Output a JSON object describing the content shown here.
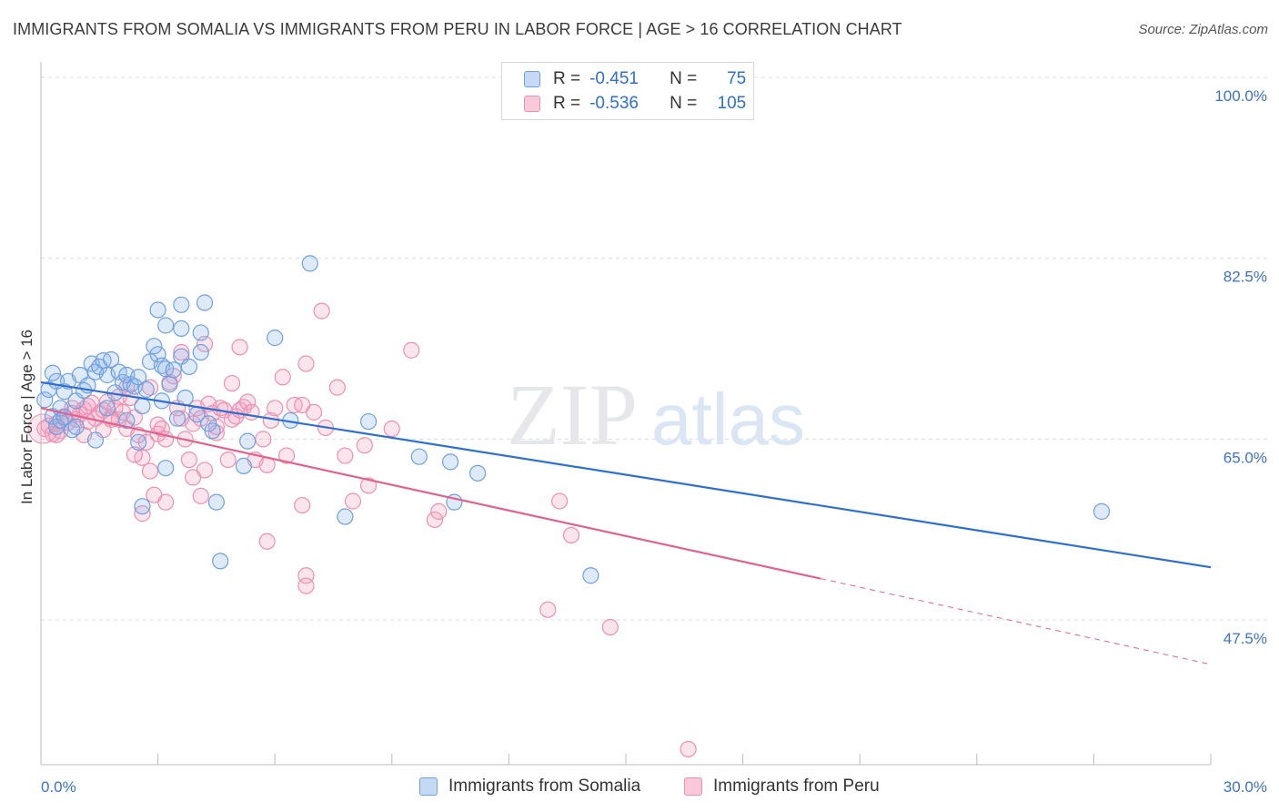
{
  "title": "IMMIGRANTS FROM SOMALIA VS IMMIGRANTS FROM PERU IN LABOR FORCE | AGE > 16 CORRELATION CHART",
  "source": "Source: ZipAtlas.com",
  "legend": {
    "r_label": "R =",
    "n_label": "N =",
    "rows": [
      {
        "r": "-0.451",
        "n": "75"
      },
      {
        "r": "-0.536",
        "n": "105"
      }
    ]
  },
  "watermark": {
    "zip": "ZIP",
    "atlas": "atlas"
  },
  "chart_data": {
    "type": "scatter",
    "title": "IMMIGRANTS FROM SOMALIA VS IMMIGRANTS FROM PERU IN LABOR FORCE | AGE > 16 CORRELATION CHART",
    "xlabel": "",
    "ylabel": "In Labor Force | Age > 16",
    "xlim": [
      0,
      30
    ],
    "ylim": [
      33.5,
      101.5
    ],
    "x_tick_labels": [
      "0.0%",
      "30.0%"
    ],
    "y_ticks": [
      47.5,
      65.0,
      82.5,
      100.0
    ],
    "y_tick_labels": [
      "47.5%",
      "65.0%",
      "82.5%",
      "100.0%"
    ],
    "grid": "horizontal dashed",
    "colors": {
      "Immigrants from Somalia": "#6fa0e0",
      "Immigrants from Peru": "#ee8fb0",
      "somalia_line": "#2f6fd0",
      "peru_line": "#e0638f"
    },
    "series": [
      {
        "name": "Immigrants from Somalia",
        "r": -0.451,
        "n": 75,
        "trend": {
          "x0": 0.0,
          "y0": 70.5,
          "x1": 30.0,
          "y1": 52.6
        },
        "points": [
          [
            0.1,
            68.8
          ],
          [
            0.3,
            67.2
          ],
          [
            0.4,
            66.2
          ],
          [
            0.5,
            66.8
          ],
          [
            0.2,
            69.8
          ],
          [
            0.4,
            70.6
          ],
          [
            0.6,
            69.6
          ],
          [
            0.5,
            68.0
          ],
          [
            0.7,
            70.6
          ],
          [
            0.8,
            65.9
          ],
          [
            0.9,
            68.7
          ],
          [
            1.0,
            71.2
          ],
          [
            1.1,
            69.7
          ],
          [
            1.2,
            70.2
          ],
          [
            1.3,
            72.3
          ],
          [
            1.4,
            71.5
          ],
          [
            1.5,
            72.0
          ],
          [
            1.6,
            72.6
          ],
          [
            1.7,
            71.2
          ],
          [
            1.8,
            72.7
          ],
          [
            1.9,
            69.5
          ],
          [
            2.0,
            71.5
          ],
          [
            2.1,
            70.5
          ],
          [
            2.2,
            71.2
          ],
          [
            2.3,
            70.3
          ],
          [
            2.4,
            70.1
          ],
          [
            2.5,
            71.0
          ],
          [
            2.6,
            68.2
          ],
          [
            2.7,
            69.8
          ],
          [
            2.8,
            72.5
          ],
          [
            2.9,
            74.0
          ],
          [
            3.0,
            73.2
          ],
          [
            3.1,
            72.1
          ],
          [
            3.2,
            71.8
          ],
          [
            3.3,
            70.3
          ],
          [
            3.4,
            71.7
          ],
          [
            3.5,
            67.0
          ],
          [
            3.6,
            73.0
          ],
          [
            3.7,
            69.0
          ],
          [
            3.8,
            72.0
          ],
          [
            3.0,
            77.5
          ],
          [
            3.2,
            76.0
          ],
          [
            3.6,
            75.7
          ],
          [
            3.6,
            78.0
          ],
          [
            4.1,
            75.3
          ],
          [
            4.2,
            78.2
          ],
          [
            4.1,
            73.4
          ],
          [
            4.3,
            66.5
          ],
          [
            4.4,
            65.8
          ],
          [
            2.5,
            64.7
          ],
          [
            1.4,
            64.9
          ],
          [
            3.2,
            62.2
          ],
          [
            2.6,
            58.5
          ],
          [
            4.5,
            58.9
          ],
          [
            4.6,
            53.2
          ],
          [
            5.3,
            64.8
          ],
          [
            5.2,
            62.4
          ],
          [
            6.0,
            74.8
          ],
          [
            6.4,
            66.8
          ],
          [
            6.9,
            82.0
          ],
          [
            8.4,
            66.7
          ],
          [
            7.8,
            57.5
          ],
          [
            9.7,
            63.3
          ],
          [
            10.5,
            62.8
          ],
          [
            10.6,
            58.9
          ],
          [
            11.2,
            61.7
          ],
          [
            14.1,
            51.8
          ],
          [
            27.2,
            58.0
          ],
          [
            0.9,
            66.2
          ],
          [
            0.3,
            71.4
          ],
          [
            2.2,
            66.8
          ],
          [
            4.0,
            67.4
          ],
          [
            1.7,
            68.0
          ],
          [
            0.6,
            67.1
          ],
          [
            3.1,
            68.7
          ]
        ]
      },
      {
        "name": "Immigrants from Peru",
        "r": -0.536,
        "n": 105,
        "trend_solid": {
          "x0": 0.0,
          "y0": 68.0,
          "x1": 20.0,
          "y1": 51.5
        },
        "trend_dashed": {
          "x0": 20.0,
          "y0": 51.5,
          "x1": 30.0,
          "y1": 43.2
        },
        "points": [
          [
            0.1,
            66.0
          ],
          [
            0.2,
            66.3
          ],
          [
            0.3,
            65.5
          ],
          [
            0.4,
            66.5
          ],
          [
            0.5,
            65.8
          ],
          [
            0.6,
            67.2
          ],
          [
            0.7,
            66.6
          ],
          [
            0.8,
            68.0
          ],
          [
            0.9,
            66.9
          ],
          [
            1.0,
            67.4
          ],
          [
            1.1,
            67.9
          ],
          [
            1.2,
            68.2
          ],
          [
            1.3,
            68.5
          ],
          [
            1.4,
            67.0
          ],
          [
            1.5,
            67.5
          ],
          [
            1.6,
            67.8
          ],
          [
            1.7,
            68.6
          ],
          [
            1.8,
            67.1
          ],
          [
            1.9,
            68.0
          ],
          [
            2.0,
            66.9
          ],
          [
            2.1,
            67.6
          ],
          [
            2.2,
            66.0
          ],
          [
            2.3,
            69.0
          ],
          [
            2.4,
            67.1
          ],
          [
            2.5,
            65.4
          ],
          [
            2.6,
            63.2
          ],
          [
            2.7,
            64.7
          ],
          [
            2.8,
            61.9
          ],
          [
            2.9,
            59.6
          ],
          [
            3.0,
            65.5
          ],
          [
            3.1,
            66.0
          ],
          [
            3.2,
            65.0
          ],
          [
            3.3,
            70.5
          ],
          [
            3.4,
            71.1
          ],
          [
            3.5,
            68.0
          ],
          [
            3.6,
            67.0
          ],
          [
            3.7,
            65.0
          ],
          [
            3.8,
            63.0
          ],
          [
            3.9,
            66.5
          ],
          [
            4.0,
            68.0
          ],
          [
            4.1,
            67.0
          ],
          [
            4.2,
            62.0
          ],
          [
            4.3,
            68.4
          ],
          [
            4.4,
            67.5
          ],
          [
            4.5,
            65.6
          ],
          [
            4.6,
            68.0
          ],
          [
            4.7,
            67.8
          ],
          [
            4.8,
            63.0
          ],
          [
            4.9,
            66.9
          ],
          [
            5.0,
            67.2
          ],
          [
            5.1,
            67.8
          ],
          [
            5.2,
            68.1
          ],
          [
            5.3,
            68.6
          ],
          [
            5.5,
            63.0
          ],
          [
            5.7,
            65.0
          ],
          [
            5.8,
            62.5
          ],
          [
            6.0,
            68.0
          ],
          [
            6.2,
            71.0
          ],
          [
            6.5,
            68.3
          ],
          [
            6.7,
            68.3
          ],
          [
            6.8,
            72.3
          ],
          [
            7.0,
            67.6
          ],
          [
            7.3,
            66.1
          ],
          [
            7.6,
            70.0
          ],
          [
            7.8,
            63.4
          ],
          [
            8.0,
            59.0
          ],
          [
            8.3,
            64.4
          ],
          [
            8.4,
            60.5
          ],
          [
            9.0,
            66.0
          ],
          [
            10.1,
            57.2
          ],
          [
            10.2,
            58.0
          ],
          [
            13.6,
            55.7
          ],
          [
            13.3,
            59.0
          ],
          [
            14.6,
            46.8
          ],
          [
            13.0,
            48.5
          ],
          [
            16.6,
            35.0
          ],
          [
            7.2,
            77.4
          ],
          [
            6.7,
            58.6
          ],
          [
            6.8,
            51.8
          ],
          [
            6.8,
            50.8
          ],
          [
            5.8,
            55.1
          ],
          [
            5.1,
            73.9
          ],
          [
            4.9,
            70.4
          ],
          [
            4.2,
            74.2
          ],
          [
            3.6,
            73.4
          ],
          [
            2.8,
            70.0
          ],
          [
            2.0,
            69.1
          ],
          [
            1.1,
            65.4
          ],
          [
            1.6,
            65.9
          ],
          [
            0.4,
            65.4
          ],
          [
            0.8,
            67.5
          ],
          [
            1.8,
            66.9
          ],
          [
            2.2,
            70.0
          ],
          [
            3.0,
            66.4
          ],
          [
            4.1,
            59.5
          ],
          [
            3.2,
            58.9
          ],
          [
            2.6,
            57.8
          ],
          [
            5.4,
            67.6
          ],
          [
            6.3,
            63.4
          ],
          [
            9.5,
            73.6
          ],
          [
            3.9,
            61.3
          ],
          [
            2.4,
            63.5
          ],
          [
            1.2,
            66.7
          ],
          [
            5.9,
            66.8
          ],
          [
            4.5,
            66.2
          ]
        ]
      }
    ]
  },
  "bottom_legend": {
    "items": [
      "Immigrants from Somalia",
      "Immigrants from Peru"
    ]
  }
}
